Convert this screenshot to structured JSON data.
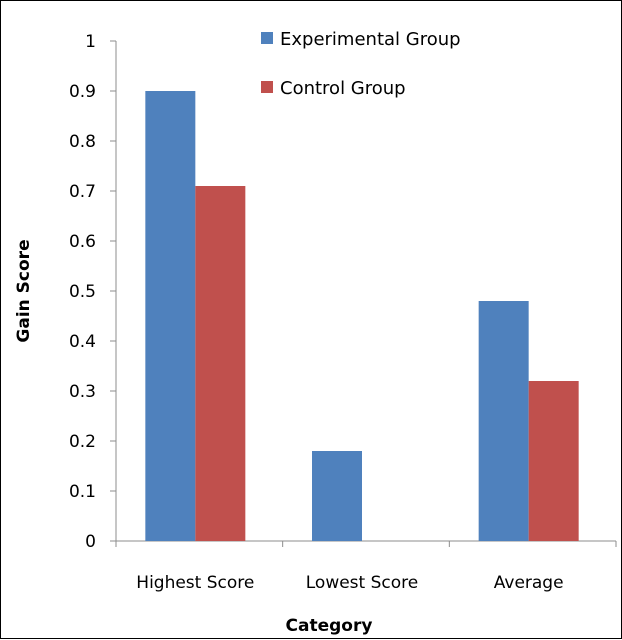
{
  "chart_data": {
    "type": "bar",
    "categories": [
      "Highest Score",
      "Lowest Score",
      "Average"
    ],
    "series": [
      {
        "name": "Experimental Group",
        "values": [
          0.9,
          0.18,
          0.48
        ],
        "color": "#4F81BD"
      },
      {
        "name": "Control Group",
        "values": [
          0.71,
          0.0,
          0.32
        ],
        "color": "#C0504D"
      }
    ],
    "xlabel": "Category",
    "ylabel": "Gain Score",
    "ylim": [
      0,
      1
    ],
    "yticks": [
      "0",
      "0.1",
      "0.2",
      "0.3",
      "0.4",
      "0.5",
      "0.6",
      "0.7",
      "0.8",
      "0.9",
      "1"
    ],
    "grid": false,
    "legend_position": "top-right"
  }
}
